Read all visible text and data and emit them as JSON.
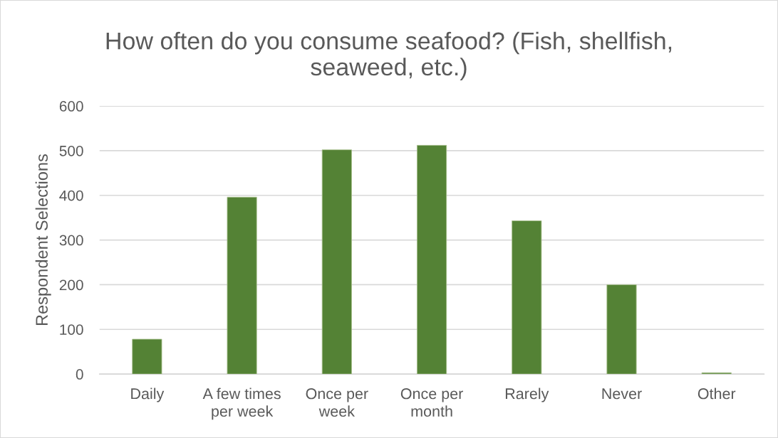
{
  "chart_data": {
    "type": "bar",
    "title": "How often do you consume seafood? (Fish, shellfish,\nseaweed, etc.)",
    "ylabel": "Respondent Selections",
    "categories": [
      "Daily",
      "A few times\nper week",
      "Once per\nweek",
      "Once per\nmonth",
      "Rarely",
      "Never",
      "Other"
    ],
    "values": [
      78,
      396,
      502,
      512,
      343,
      200,
      3
    ],
    "color": "#548235",
    "ylim": [
      0,
      600
    ],
    "yticks": [
      0,
      100,
      200,
      300,
      400,
      500,
      600
    ],
    "grid": "y"
  }
}
